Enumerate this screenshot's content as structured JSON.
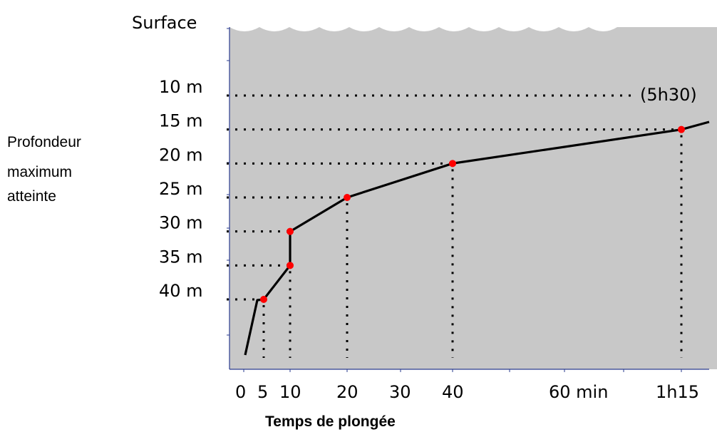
{
  "chart_data": {
    "type": "line",
    "top_label": "Surface",
    "ylabel": "Profondeur maximum atteinte",
    "ylabel_lines": [
      "Profondeur",
      "maximum",
      "atteinte"
    ],
    "xlabel": "Temps de plongée",
    "y_ticks": [
      {
        "depth": 10,
        "label": "10 m"
      },
      {
        "depth": 15,
        "label": "15 m"
      },
      {
        "depth": 20,
        "label": "20 m"
      },
      {
        "depth": 25,
        "label": "25 m"
      },
      {
        "depth": 30,
        "label": "30 m"
      },
      {
        "depth": 35,
        "label": "35 m"
      },
      {
        "depth": 40,
        "label": "40 m"
      }
    ],
    "x_ticks": [
      {
        "t": 0,
        "label": "0"
      },
      {
        "t": 5,
        "label": "5"
      },
      {
        "t": 10,
        "label": "10"
      },
      {
        "t": 20,
        "label": "20"
      },
      {
        "t": 30,
        "label": "30"
      },
      {
        "t": 40,
        "label": "40"
      },
      {
        "t": 60,
        "label": "60 min"
      },
      {
        "t": 75,
        "label": "1h15"
      }
    ],
    "series": [
      {
        "points": [
          {
            "t": 5,
            "depth": 40
          },
          {
            "t": 10,
            "depth": 35
          },
          {
            "t": 10,
            "depth": 30
          },
          {
            "t": 20,
            "depth": 25
          },
          {
            "t": 40,
            "depth": 20
          },
          {
            "t": 75,
            "depth": 15
          }
        ]
      }
    ],
    "annotation_10m": "(5h30)",
    "colors": {
      "background": "#c8c8c8",
      "line": "#000000",
      "point": "#ff0000",
      "axis": "#2a3b8f"
    }
  }
}
